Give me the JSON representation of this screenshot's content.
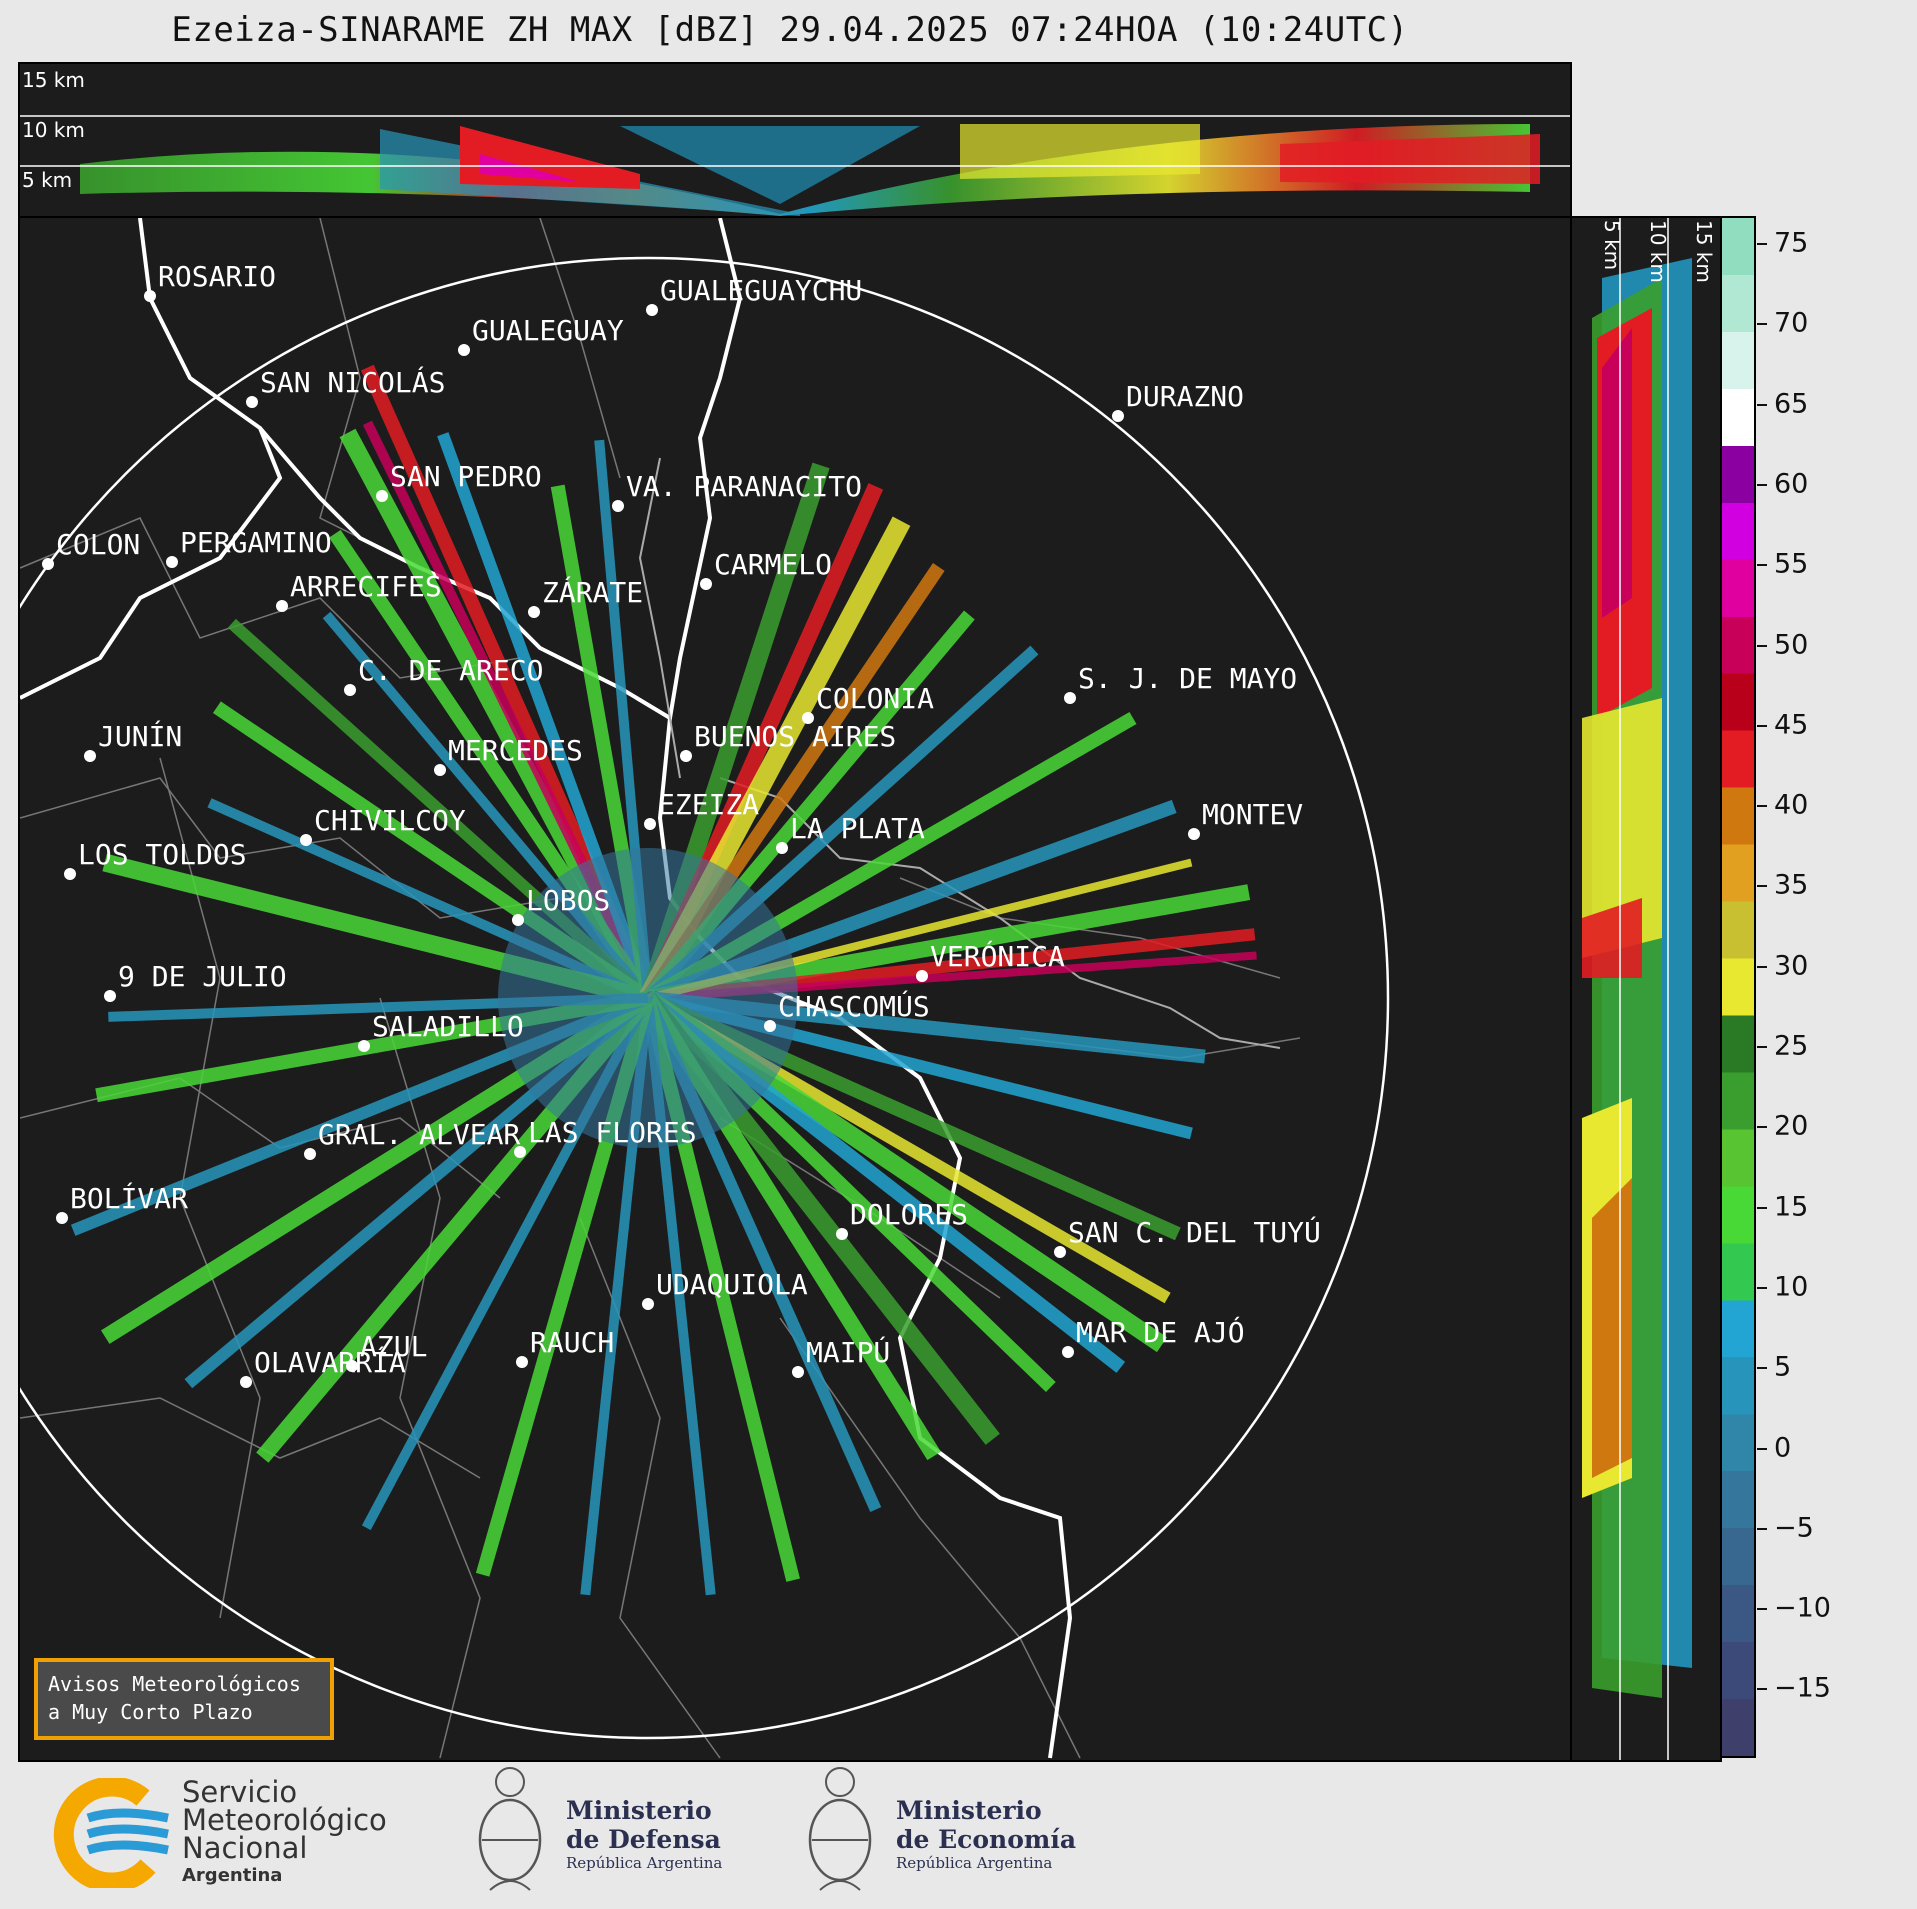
{
  "title": "Ezeiza-SINARAME ZH MAX [dBZ] 29.04.2025 07:24HOA (10:24UTC)",
  "top_alt_labels": [
    "15 km",
    "10 km",
    "5 km"
  ],
  "side_alt_labels": [
    "5 km",
    "10 km",
    "15 km"
  ],
  "colorbar": {
    "ticks": [
      "75",
      "70",
      "65",
      "60",
      "55",
      "50",
      "45",
      "40",
      "35",
      "30",
      "25",
      "20",
      "15",
      "10",
      "5",
      "0",
      "−5",
      "−10",
      "−15"
    ],
    "colors": [
      "#3f3f6b",
      "#3b4a78",
      "#3a5883",
      "#386890",
      "#35779c",
      "#2f86a9",
      "#2795bb",
      "#22a5d2",
      "#33c84f",
      "#49d936",
      "#58c432",
      "#3a9e2e",
      "#2a7a25",
      "#e8e830",
      "#c8c030",
      "#e2a020",
      "#d07810",
      "#e31c24",
      "#b8001a",
      "#c8005a",
      "#e000a0",
      "#d000e0",
      "#8a00a0",
      "#ffffff",
      "#d8f2ec",
      "#b0e8d4",
      "#90ddc0"
    ],
    "accent_avisos": "#f0a000"
  },
  "cities": [
    {
      "name": "ROSARIO"
    },
    {
      "name": "GUALEGUAYCHU"
    },
    {
      "name": "GUALEGUAY"
    },
    {
      "name": "SAN NICOLÁS"
    },
    {
      "name": "DURAZNO"
    },
    {
      "name": "SAN PEDRO"
    },
    {
      "name": "VA. PARANACITO"
    },
    {
      "name": "COLON"
    },
    {
      "name": "PERGAMINO"
    },
    {
      "name": "CARMELO"
    },
    {
      "name": "ARRECIFES"
    },
    {
      "name": "ZÁRATE"
    },
    {
      "name": "C. DE ARECO"
    },
    {
      "name": "S. J. DE MAYO"
    },
    {
      "name": "COLONIA"
    },
    {
      "name": "JUNÍN"
    },
    {
      "name": "BUENOS AIRES"
    },
    {
      "name": "MERCEDES"
    },
    {
      "name": "EZEIZA"
    },
    {
      "name": "MONTEV"
    },
    {
      "name": "CHIVILCOY"
    },
    {
      "name": "LA PLATA"
    },
    {
      "name": "LOS TOLDOS"
    },
    {
      "name": "LOBOS"
    },
    {
      "name": "VERÓNICA"
    },
    {
      "name": "9 DE JULIO"
    },
    {
      "name": "CHASCOMÚS"
    },
    {
      "name": "SALADILLO"
    },
    {
      "name": "GRAL. ALVEAR"
    },
    {
      "name": "LAS FLORES"
    },
    {
      "name": "BOLÍVAR"
    },
    {
      "name": "DOLORES"
    },
    {
      "name": "SAN C. DEL TUYÚ"
    },
    {
      "name": "UDAQUIOLA"
    },
    {
      "name": "MAR DE AJÓ"
    },
    {
      "name": "AZUL"
    },
    {
      "name": "RAUCH"
    },
    {
      "name": "OLAVARRÍA"
    },
    {
      "name": "MAIPÚ"
    }
  ],
  "avisos": {
    "line1": "Avisos Meteorológicos",
    "line2": "a Muy Corto Plazo"
  },
  "footer": {
    "smn_line1": "Servicio",
    "smn_line2": "Meteorológico",
    "smn_line3": "Nacional",
    "smn_line4": "Argentina",
    "defensa_line1": "Ministerio",
    "defensa_line2": "de Defensa",
    "defensa_sub": "República Argentina",
    "economia_line1": "Ministerio",
    "economia_line2": "de Economía",
    "economia_sub": "República Argentina"
  }
}
